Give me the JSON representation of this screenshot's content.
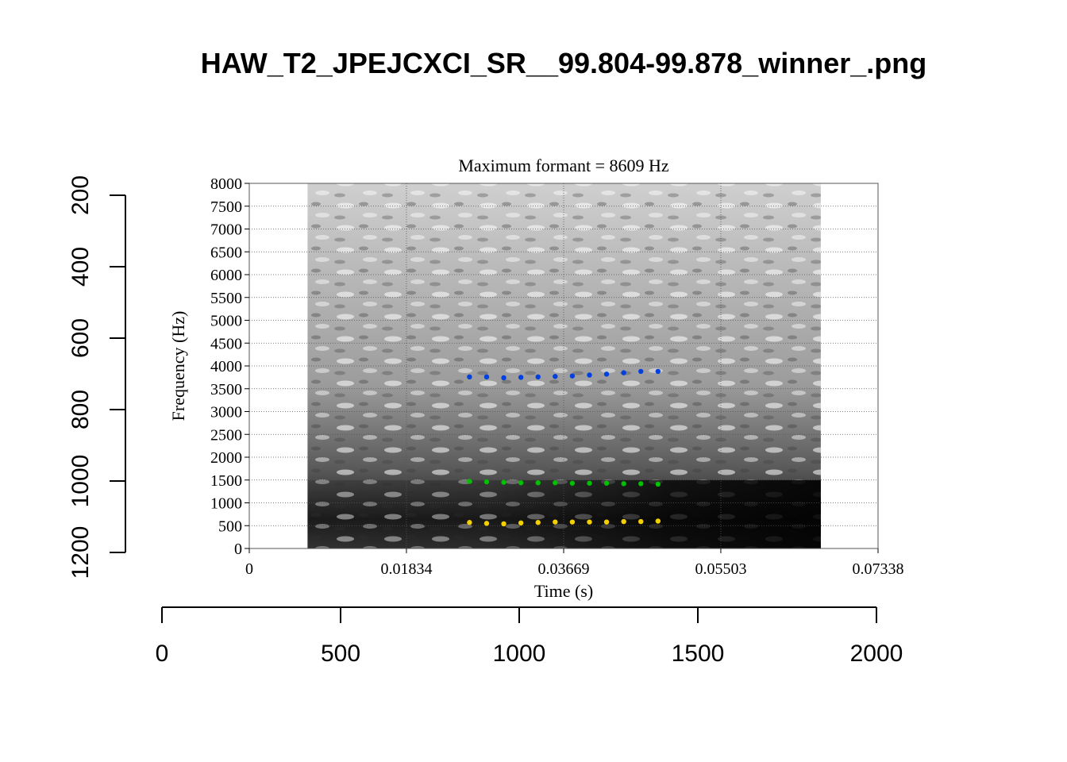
{
  "title": "HAW_T2_JPEJCXCI_SR__99.804-99.878_winner_.png",
  "outer_axes": {
    "x_ticks": [
      "0",
      "500",
      "1000",
      "1500",
      "2000"
    ],
    "y_ticks": [
      "200",
      "400",
      "600",
      "800",
      "1000",
      "1200"
    ]
  },
  "chart_data": {
    "type": "scatter",
    "title": "Maximum formant = 8609 Hz",
    "xlabel": "Time (s)",
    "ylabel": "Frequency (Hz)",
    "xlim": [
      0,
      0.07338
    ],
    "ylim": [
      0,
      8000
    ],
    "x_tick_labels": [
      "0",
      "0.01834",
      "0.03669",
      "0.05503",
      "0.07338"
    ],
    "y_tick_labels": [
      "0",
      "500",
      "1000",
      "1500",
      "2000",
      "2500",
      "3000",
      "3500",
      "4000",
      "4500",
      "5000",
      "5500",
      "6000",
      "6500",
      "7000",
      "7500",
      "8000"
    ],
    "grid": true,
    "spectrogram_span": [
      0.0068,
      0.0667
    ],
    "series": [
      {
        "color": "#f5d000",
        "x": [
          0.0257,
          0.0277,
          0.0297,
          0.0317,
          0.0337,
          0.0357,
          0.0377,
          0.0397,
          0.0417,
          0.0437,
          0.0457,
          0.0477
        ],
        "y": [
          570,
          550,
          540,
          560,
          570,
          580,
          580,
          580,
          580,
          590,
          590,
          600
        ]
      },
      {
        "color": "#00c000",
        "x": [
          0.0257,
          0.0277,
          0.0297,
          0.0317,
          0.0337,
          0.0357,
          0.0377,
          0.0397,
          0.0417,
          0.0437,
          0.0457,
          0.0477
        ],
        "y": [
          1470,
          1460,
          1450,
          1440,
          1440,
          1440,
          1430,
          1430,
          1430,
          1420,
          1420,
          1410
        ]
      },
      {
        "color": "#0040e0",
        "x": [
          0.0257,
          0.0277,
          0.0297,
          0.0317,
          0.0337,
          0.0357,
          0.0377,
          0.0397,
          0.0417,
          0.0437,
          0.0457,
          0.0477
        ],
        "y": [
          3760,
          3760,
          3740,
          3750,
          3760,
          3770,
          3780,
          3800,
          3820,
          3850,
          3880,
          3880
        ]
      }
    ]
  }
}
